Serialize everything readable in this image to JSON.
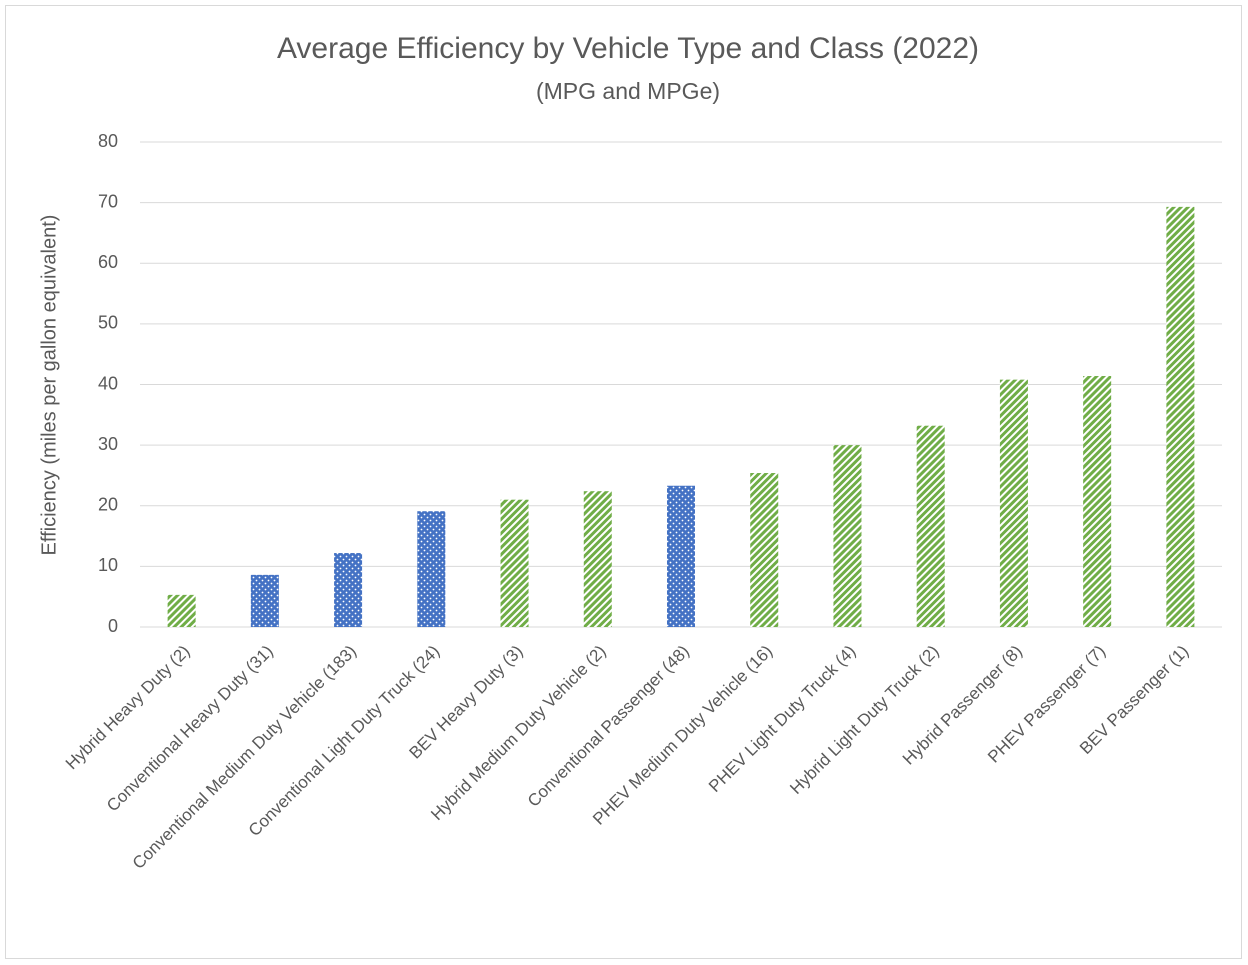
{
  "chart_data": {
    "type": "bar",
    "title": "Average Efficiency by Vehicle Type and Class (2022)",
    "subtitle": "(MPG and MPGe)",
    "y_label": "Efficiency (miles per gallon equivalent)",
    "categories": [
      "Hybrid Heavy Duty (2)",
      "Conventional Heavy Duty (31)",
      "Conventional Medium Duty Vehicle (183)",
      "Conventional Light Duty Truck (24)",
      "BEV Heavy Duty (3)",
      "Hybrid Medium Duty Vehicle (2)",
      "Conventional Passenger (48)",
      "PHEV Medium Duty Vehicle (16)",
      "PHEV Light Duty Truck (4)",
      "Hybrid Light Duty Truck (2)",
      "Hybrid Passenger (8)",
      "PHEV Passenger (7)",
      "BEV Passenger (1)"
    ],
    "values": [
      5.3,
      8.6,
      12.2,
      19.1,
      21.0,
      22.4,
      23.3,
      25.4,
      30.0,
      33.2,
      40.8,
      41.4,
      69.3
    ],
    "colors": [
      "#70ad47",
      "#4472c4",
      "#4472c4",
      "#4472c4",
      "#70ad47",
      "#70ad47",
      "#4472c4",
      "#70ad47",
      "#70ad47",
      "#70ad47",
      "#70ad47",
      "#70ad47",
      "#70ad47"
    ],
    "patterns": [
      "diagonal",
      "dots",
      "dots",
      "dots",
      "diagonal",
      "diagonal",
      "dots",
      "diagonal",
      "diagonal",
      "diagonal",
      "diagonal",
      "diagonal",
      "diagonal"
    ],
    "ylim": [
      0,
      80
    ],
    "yticks": [
      0,
      10,
      20,
      30,
      40,
      50,
      60,
      70,
      80
    ],
    "grid": true
  }
}
